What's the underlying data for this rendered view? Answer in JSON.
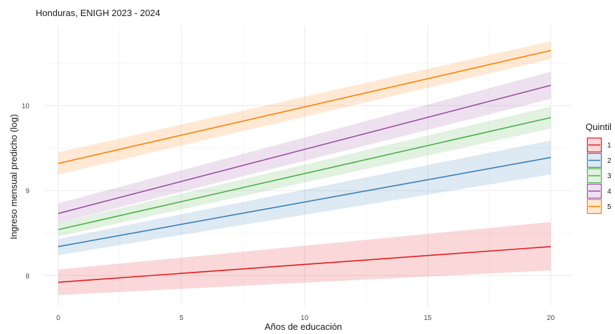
{
  "chart_data": {
    "type": "line",
    "title": "Honduras, ENIGH 2023 - 2024",
    "xlabel": "Años de educación",
    "ylabel": "Ingreso mensual predicho (log)",
    "xlim": [
      -0.6,
      20.9
    ],
    "ylim": [
      7.64,
      10.94
    ],
    "xticks": [
      0,
      5,
      10,
      15,
      20
    ],
    "yticks": [
      8,
      9,
      10
    ],
    "grid": true,
    "legend": {
      "title": "Quintil",
      "position": "right"
    },
    "series": [
      {
        "name": "1",
        "color": "#e41a1c",
        "x": [
          0,
          20
        ],
        "y": [
          7.92,
          8.34
        ],
        "lower": [
          7.77,
          8.06
        ],
        "upper": [
          8.07,
          8.63
        ]
      },
      {
        "name": "2",
        "color": "#377eb8",
        "x": [
          0,
          20
        ],
        "y": [
          8.34,
          9.39
        ],
        "lower": [
          8.24,
          9.19
        ],
        "upper": [
          8.43,
          9.59
        ]
      },
      {
        "name": "3",
        "color": "#4daf4a",
        "x": [
          0,
          20
        ],
        "y": [
          8.54,
          9.86
        ],
        "lower": [
          8.46,
          9.73
        ],
        "upper": [
          8.62,
          9.99
        ]
      },
      {
        "name": "4",
        "color": "#984ea3",
        "x": [
          0,
          20
        ],
        "y": [
          8.73,
          10.24
        ],
        "lower": [
          8.62,
          10.08
        ],
        "upper": [
          8.85,
          10.4
        ]
      },
      {
        "name": "5",
        "color": "#ff7f00",
        "x": [
          0,
          20
        ],
        "y": [
          9.32,
          10.65
        ],
        "lower": [
          9.19,
          10.55
        ],
        "upper": [
          9.45,
          10.76
        ]
      }
    ]
  }
}
